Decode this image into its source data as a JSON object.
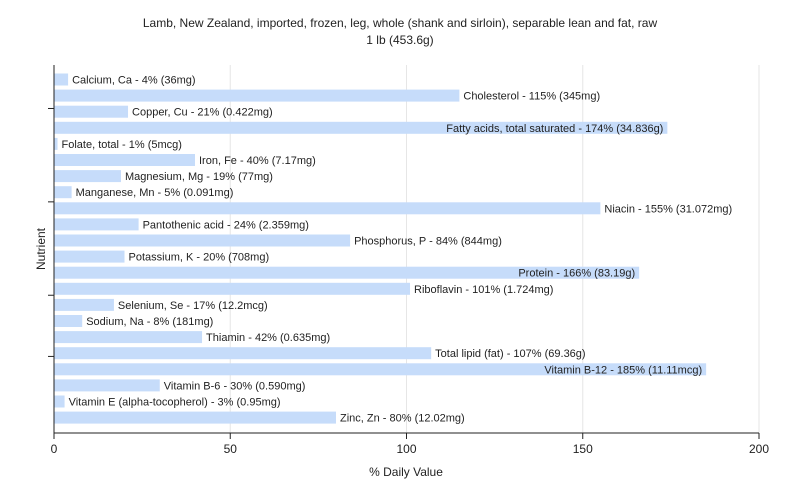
{
  "chart_data": {
    "type": "bar",
    "orientation": "horizontal",
    "title": "Lamb, New Zealand, imported, frozen, leg, whole (shank and sirloin), separable lean and fat, raw",
    "subtitle": "1 lb (453.6g)",
    "xlabel": "% Daily Value",
    "ylabel": "Nutrient",
    "xlim": [
      0,
      200
    ],
    "xticks": [
      "0",
      "50",
      "100",
      "150",
      "200"
    ],
    "grid": true,
    "bar_color": "#c6dcfa",
    "categories": [
      "Calcium, Ca",
      "Cholesterol",
      "Copper, Cu",
      "Fatty acids, total saturated",
      "Folate, total",
      "Iron, Fe",
      "Magnesium, Mg",
      "Manganese, Mn",
      "Niacin",
      "Pantothenic acid",
      "Phosphorus, P",
      "Potassium, K",
      "Protein",
      "Riboflavin",
      "Selenium, Se",
      "Sodium, Na",
      "Thiamin",
      "Total lipid (fat)",
      "Vitamin B-12",
      "Vitamin B-6",
      "Vitamin E (alpha-tocopherol)",
      "Zinc, Zn"
    ],
    "values": [
      4,
      115,
      21,
      174,
      1,
      40,
      19,
      5,
      155,
      24,
      84,
      20,
      166,
      101,
      17,
      8,
      42,
      107,
      185,
      30,
      3,
      80
    ],
    "labels": [
      "Calcium, Ca - 4% (36mg)",
      "Cholesterol - 115% (345mg)",
      "Copper, Cu - 21% (0.422mg)",
      "Fatty acids, total saturated - 174% (34.836g)",
      "Folate, total - 1% (5mcg)",
      "Iron, Fe - 40% (7.17mg)",
      "Magnesium, Mg - 19% (77mg)",
      "Manganese, Mn - 5% (0.091mg)",
      "Niacin - 155% (31.072mg)",
      "Pantothenic acid - 24% (2.359mg)",
      "Phosphorus, P - 84% (844mg)",
      "Potassium, K - 20% (708mg)",
      "Protein - 166% (83.19g)",
      "Riboflavin - 101% (1.724mg)",
      "Selenium, Se - 17% (12.2mcg)",
      "Sodium, Na - 8% (181mg)",
      "Thiamin - 42% (0.635mg)",
      "Total lipid (fat) - 107% (69.36g)",
      "Vitamin B-12 - 185% (11.11mcg)",
      "Vitamin B-6 - 30% (0.590mg)",
      "Vitamin E (alpha-tocopherol) - 3% (0.95mg)",
      "Zinc, Zn - 80% (12.02mg)"
    ]
  }
}
